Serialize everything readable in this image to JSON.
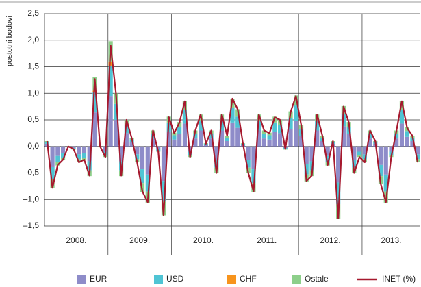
{
  "chart_data": {
    "type": "bar",
    "y_label": "postotni bodovi",
    "year_labels": [
      "2008.",
      "2009.",
      "2010.",
      "2011.",
      "2012.",
      "2013."
    ],
    "months_per_year": 12,
    "ylim": [
      -1.5,
      2.5
    ],
    "yticks": [
      {
        "value": -1.5,
        "label": "–1,5"
      },
      {
        "value": -1,
        "label": "–1,0"
      },
      {
        "value": -0.5,
        "label": "–0,5"
      },
      {
        "value": 0,
        "label": "0,0"
      },
      {
        "value": 0.5,
        "label": "0,5"
      },
      {
        "value": 1,
        "label": "1,0"
      },
      {
        "value": 1.5,
        "label": "1,5"
      },
      {
        "value": 2,
        "label": "2,0"
      },
      {
        "value": 2.5,
        "label": "2,5"
      }
    ],
    "grid": true,
    "series": [
      {
        "name": "EUR",
        "color": "#8e8cc9",
        "values": [
          0.05,
          -0.39,
          -0.18,
          -0.13,
          0,
          -0.03,
          -0.15,
          -0.13,
          -0.28,
          0.64,
          0,
          -0.1,
          0.95,
          0.5,
          -0.28,
          0.25,
          0.08,
          -0.15,
          -0.43,
          -0.53,
          0.15,
          -0.05,
          -0.65,
          0.28,
          0.13,
          0.23,
          0.43,
          -0.1,
          0.15,
          0.3,
          0.03,
          0.15,
          -0.25,
          0.3,
          0.1,
          0.45,
          0.35,
          0.03,
          -0.25,
          -0.43,
          0.3,
          0.15,
          0.13,
          0.28,
          0.25,
          -0.03,
          0.33,
          0.48,
          0.2,
          -0.33,
          -0.28,
          0.3,
          0.1,
          -0.18,
          0.05,
          -0.68,
          0.38,
          0.23,
          -0.25,
          -0.1,
          -0.15,
          0.15,
          0.05,
          -0.35,
          -0.53,
          -0.1,
          0.15,
          0.43,
          0.18,
          0.1,
          -0.15
        ]
      },
      {
        "name": "USD",
        "color": "#4fc4d4",
        "values": [
          0.03,
          -0.23,
          -0.11,
          -0.08,
          0,
          -0.02,
          -0.09,
          -0.08,
          -0.17,
          0.38,
          0,
          -0.06,
          0.57,
          0.3,
          -0.17,
          0.15,
          0.05,
          -0.09,
          -0.26,
          -0.32,
          0.09,
          -0.03,
          -0.39,
          0.17,
          0.08,
          0.14,
          0.26,
          -0.06,
          0.09,
          0.18,
          0.02,
          0.09,
          -0.15,
          0.18,
          0.06,
          0.27,
          0.21,
          0.02,
          -0.15,
          -0.26,
          0.18,
          0.09,
          0.08,
          0.17,
          0.15,
          -0.02,
          0.2,
          0.29,
          0.12,
          -0.2,
          -0.17,
          0.18,
          0.06,
          -0.11,
          0.03,
          -0.41,
          0.23,
          0.14,
          -0.15,
          -0.06,
          -0.09,
          0.09,
          0.03,
          -0.21,
          -0.32,
          -0.06,
          0.09,
          0.26,
          0.11,
          0.06,
          -0.09
        ]
      },
      {
        "name": "CHF",
        "color": "#f7941d",
        "values": [
          0,
          0,
          0,
          0,
          0,
          0,
          0,
          0,
          0,
          0.03,
          0,
          0,
          0.08,
          0,
          0,
          0,
          0,
          0,
          0,
          0,
          0,
          0,
          0,
          0,
          0,
          0,
          0,
          0,
          0,
          0,
          0,
          0,
          0,
          0,
          0,
          0,
          0,
          0,
          0,
          0,
          0,
          0,
          0,
          0,
          0,
          0,
          0,
          0,
          0,
          0,
          0,
          0,
          0,
          0,
          0,
          0,
          0,
          0,
          0,
          0,
          0,
          0,
          0,
          0,
          0,
          0,
          0,
          0,
          0,
          0,
          0
        ]
      },
      {
        "name": "Ostale",
        "color": "#8dcf8a",
        "values": [
          0.02,
          -0.16,
          -0.07,
          -0.05,
          0,
          -0.01,
          -0.06,
          -0.05,
          -0.11,
          0.25,
          0,
          -0.04,
          0.38,
          0.2,
          -0.11,
          0.1,
          0.03,
          -0.06,
          -0.17,
          -0.21,
          0.06,
          -0.02,
          -0.26,
          0.11,
          0.05,
          0.09,
          0.17,
          -0.04,
          0.06,
          0.12,
          0.01,
          0.06,
          -0.1,
          0.12,
          0.04,
          0.18,
          0.14,
          0.01,
          -0.1,
          -0.17,
          0.12,
          0.06,
          0.05,
          0.11,
          0.1,
          -0.01,
          0.13,
          0.19,
          0.08,
          -0.13,
          -0.11,
          0.12,
          0.04,
          -0.07,
          0.02,
          -0.27,
          0.15,
          0.09,
          -0.1,
          -0.04,
          -0.06,
          0.06,
          0.02,
          -0.14,
          -0.21,
          -0.04,
          0.06,
          0.17,
          0.07,
          0.04,
          -0.06
        ]
      }
    ],
    "line": {
      "name": "INET (%)",
      "color": "#a6192e",
      "values": [
        0.1,
        -0.78,
        -0.35,
        -0.25,
        0,
        -0.05,
        -0.3,
        -0.25,
        -0.55,
        1.27,
        0,
        -0.2,
        1.9,
        1,
        -0.55,
        0.5,
        0.15,
        -0.3,
        -0.85,
        -1.05,
        0.3,
        -0.1,
        -1.3,
        0.55,
        0.25,
        0.45,
        0.85,
        -0.2,
        0.3,
        0.6,
        0.05,
        0.3,
        -0.5,
        0.6,
        0.2,
        0.9,
        0.7,
        0.05,
        -0.5,
        -0.85,
        0.6,
        0.3,
        0.25,
        0.55,
        0.5,
        -0.05,
        0.65,
        0.95,
        0.4,
        -0.65,
        -0.55,
        0.6,
        0.2,
        -0.35,
        0.1,
        -1.35,
        0.75,
        0.45,
        -0.5,
        -0.2,
        -0.3,
        0.3,
        0.1,
        -0.7,
        -1.05,
        -0.2,
        0.3,
        0.85,
        0.35,
        0.2,
        -0.3
      ]
    }
  }
}
